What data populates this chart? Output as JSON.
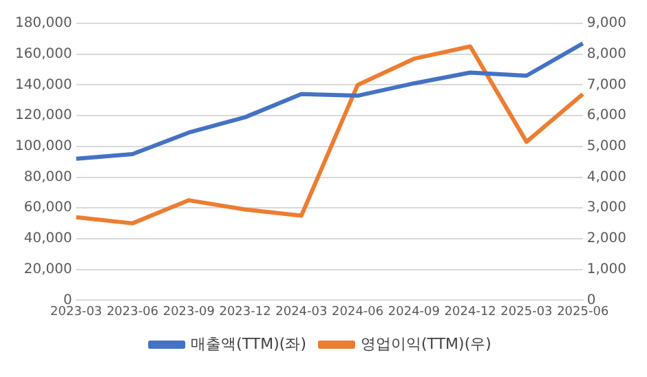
{
  "chart_data": {
    "type": "line",
    "categories": [
      "2023-03",
      "2023-06",
      "2023-09",
      "2023-12",
      "2024-03",
      "2024-06",
      "2024-09",
      "2024-12",
      "2025-03",
      "2025-06"
    ],
    "series": [
      {
        "name": "매출액(TTM)(좌)",
        "color": "#4472c4",
        "values": [
          92000,
          95000,
          109000,
          119000,
          134000,
          133000,
          141000,
          148000,
          146000,
          167000
        ]
      },
      {
        "name": "영업이익(TTM)(우)",
        "color": "#ed7d31",
        "axis": "y2",
        "values": [
          2700,
          2500,
          3250,
          2950,
          2750,
          7000,
          7850,
          8250,
          5150,
          6700
        ]
      }
    ],
    "ylim": [
      0,
      180000
    ],
    "yticks": [
      {
        "value": 0,
        "label": "0"
      },
      {
        "value": 20000,
        "label": "20,000"
      },
      {
        "value": 40000,
        "label": "40,000"
      },
      {
        "value": 60000,
        "label": "60,000"
      },
      {
        "value": 80000,
        "label": "80,000"
      },
      {
        "value": 100000,
        "label": "100,000"
      },
      {
        "value": 120000,
        "label": "120,000"
      },
      {
        "value": 140000,
        "label": "140,000"
      },
      {
        "value": 160000,
        "label": "160,000"
      },
      {
        "value": 180000,
        "label": "180,000"
      }
    ],
    "y2lim": [
      0,
      9000
    ],
    "y2ticks": [
      {
        "value": 0,
        "label": "0"
      },
      {
        "value": 1000,
        "label": "1,000"
      },
      {
        "value": 2000,
        "label": "2,000"
      },
      {
        "value": 3000,
        "label": "3,000"
      },
      {
        "value": 4000,
        "label": "4,000"
      },
      {
        "value": 5000,
        "label": "5,000"
      },
      {
        "value": 6000,
        "label": "6,000"
      },
      {
        "value": 7000,
        "label": "7,000"
      },
      {
        "value": 8000,
        "label": "8,000"
      },
      {
        "value": 9000,
        "label": "9,000"
      }
    ],
    "grid": "y",
    "legend": "bottom",
    "marker": "none",
    "line_style": "solid"
  }
}
